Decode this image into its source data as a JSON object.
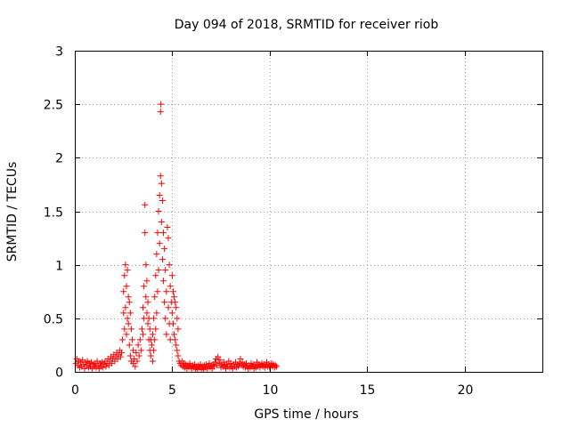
{
  "chart_data": {
    "type": "scatter",
    "title": "Day 094 of 2018, SRMTID for receiver riob",
    "xlabel": "GPS time / hours",
    "ylabel": "SRMTID / TECUs",
    "xlim": [
      0,
      24
    ],
    "ylim": [
      0,
      3
    ],
    "xticks": [
      0,
      5,
      10,
      15,
      20
    ],
    "xtick_labels": [
      "0",
      "5",
      "10",
      "15",
      "20"
    ],
    "yticks": [
      0,
      0.5,
      1,
      1.5,
      2,
      2.5,
      3
    ],
    "ytick_labels": [
      "0",
      "0.5",
      "1",
      "1.5",
      "2",
      "2.5",
      "3"
    ],
    "grid": true,
    "marker": "+",
    "color": "#ff0000",
    "series": [
      {
        "values": [
          [
            0.05,
            0.08
          ],
          [
            0.1,
            0.12
          ],
          [
            0.15,
            0.06
          ],
          [
            0.2,
            0.1
          ],
          [
            0.25,
            0.04
          ],
          [
            0.3,
            0.09
          ],
          [
            0.35,
            0.05
          ],
          [
            0.4,
            0.11
          ],
          [
            0.45,
            0.07
          ],
          [
            0.5,
            0.03
          ],
          [
            0.55,
            0.09
          ],
          [
            0.6,
            0.06
          ],
          [
            0.65,
            0.1
          ],
          [
            0.7,
            0.04
          ],
          [
            0.75,
            0.08
          ],
          [
            0.8,
            0.05
          ],
          [
            0.85,
            0.09
          ],
          [
            0.9,
            0.03
          ],
          [
            0.95,
            0.07
          ],
          [
            1.0,
            0.05
          ],
          [
            1.05,
            0.08
          ],
          [
            1.1,
            0.04
          ],
          [
            1.15,
            0.1
          ],
          [
            1.2,
            0.06
          ],
          [
            1.25,
            0.03
          ],
          [
            1.3,
            0.08
          ],
          [
            1.35,
            0.05
          ],
          [
            1.4,
            0.09
          ],
          [
            1.45,
            0.04
          ],
          [
            1.5,
            0.07
          ],
          [
            1.55,
            0.1
          ],
          [
            1.6,
            0.05
          ],
          [
            1.65,
            0.08
          ],
          [
            1.7,
            0.12
          ],
          [
            1.75,
            0.06
          ],
          [
            1.8,
            0.1
          ],
          [
            1.85,
            0.14
          ],
          [
            1.9,
            0.08
          ],
          [
            1.95,
            0.12
          ],
          [
            2.0,
            0.16
          ],
          [
            2.05,
            0.1
          ],
          [
            2.1,
            0.14
          ],
          [
            2.15,
            0.18
          ],
          [
            2.2,
            0.12
          ],
          [
            2.25,
            0.16
          ],
          [
            2.3,
            0.2
          ],
          [
            2.35,
            0.14
          ],
          [
            2.4,
            0.18
          ],
          [
            2.45,
            0.3
          ],
          [
            2.5,
            0.55
          ],
          [
            2.5,
            0.75
          ],
          [
            2.55,
            0.4
          ],
          [
            2.55,
            0.9
          ],
          [
            2.6,
            0.6
          ],
          [
            2.6,
            1.0
          ],
          [
            2.65,
            0.35
          ],
          [
            2.65,
            0.8
          ],
          [
            2.7,
            0.5
          ],
          [
            2.7,
            0.95
          ],
          [
            2.75,
            0.45
          ],
          [
            2.75,
            0.7
          ],
          [
            2.8,
            0.25
          ],
          [
            2.8,
            0.65
          ],
          [
            2.85,
            0.15
          ],
          [
            2.85,
            0.55
          ],
          [
            2.9,
            0.1
          ],
          [
            2.9,
            0.4
          ],
          [
            2.95,
            0.3
          ],
          [
            3.0,
            0.08
          ],
          [
            3.0,
            0.2
          ],
          [
            3.05,
            0.12
          ],
          [
            3.1,
            0.05
          ],
          [
            3.15,
            0.18
          ],
          [
            3.2,
            0.1
          ],
          [
            3.25,
            0.25
          ],
          [
            3.3,
            0.15
          ],
          [
            3.35,
            0.3
          ],
          [
            3.4,
            0.2
          ],
          [
            3.45,
            0.4
          ],
          [
            3.5,
            0.35
          ],
          [
            3.5,
            0.6
          ],
          [
            3.55,
            0.5
          ],
          [
            3.55,
            0.8
          ],
          [
            3.6,
            1.3
          ],
          [
            3.6,
            1.56
          ],
          [
            3.65,
            0.7
          ],
          [
            3.65,
            1.0
          ],
          [
            3.7,
            0.55
          ],
          [
            3.7,
            0.85
          ],
          [
            3.75,
            0.45
          ],
          [
            3.75,
            0.65
          ],
          [
            3.8,
            0.3
          ],
          [
            3.8,
            0.5
          ],
          [
            3.85,
            0.2
          ],
          [
            3.85,
            0.4
          ],
          [
            3.9,
            0.15
          ],
          [
            3.9,
            0.3
          ],
          [
            3.95,
            0.25
          ],
          [
            4.0,
            0.1
          ],
          [
            4.0,
            0.35
          ],
          [
            4.05,
            0.2
          ],
          [
            4.05,
            0.5
          ],
          [
            4.1,
            0.3
          ],
          [
            4.1,
            0.7
          ],
          [
            4.15,
            0.4
          ],
          [
            4.15,
            0.9
          ],
          [
            4.2,
            0.55
          ],
          [
            4.2,
            1.1
          ],
          [
            4.25,
            0.75
          ],
          [
            4.25,
            1.3
          ],
          [
            4.3,
            0.95
          ],
          [
            4.3,
            1.5
          ],
          [
            4.35,
            1.2
          ],
          [
            4.35,
            1.65
          ],
          [
            4.4,
            1.83
          ],
          [
            4.4,
            2.43
          ],
          [
            4.42,
            2.5
          ],
          [
            4.45,
            1.4
          ],
          [
            4.45,
            1.76
          ],
          [
            4.5,
            1.05
          ],
          [
            4.5,
            1.6
          ],
          [
            4.55,
            0.85
          ],
          [
            4.55,
            1.3
          ],
          [
            4.6,
            0.65
          ],
          [
            4.6,
            1.15
          ],
          [
            4.65,
            0.5
          ],
          [
            4.65,
            0.95
          ],
          [
            4.7,
            0.35
          ],
          [
            4.7,
            0.75
          ],
          [
            4.75,
            1.35
          ],
          [
            4.8,
            1.25
          ],
          [
            4.8,
            0.6
          ],
          [
            4.85,
            1.0
          ],
          [
            4.85,
            0.45
          ],
          [
            4.9,
            0.8
          ],
          [
            4.9,
            0.3
          ],
          [
            4.95,
            0.65
          ],
          [
            5.0,
            0.55
          ],
          [
            5.0,
            0.9
          ],
          [
            5.05,
            0.45
          ],
          [
            5.05,
            0.75
          ],
          [
            5.1,
            0.35
          ],
          [
            5.1,
            0.7
          ],
          [
            5.15,
            0.3
          ],
          [
            5.15,
            0.65
          ],
          [
            5.2,
            0.25
          ],
          [
            5.2,
            0.6
          ],
          [
            5.25,
            0.2
          ],
          [
            5.25,
            0.5
          ],
          [
            5.3,
            0.15
          ],
          [
            5.3,
            0.4
          ],
          [
            5.35,
            0.1
          ],
          [
            5.4,
            0.08
          ],
          [
            5.45,
            0.06
          ],
          [
            5.5,
            0.1
          ],
          [
            5.55,
            0.05
          ],
          [
            5.6,
            0.08
          ],
          [
            5.65,
            0.04
          ],
          [
            5.7,
            0.07
          ],
          [
            5.75,
            0.03
          ],
          [
            5.8,
            0.06
          ],
          [
            5.85,
            0.04
          ],
          [
            5.9,
            0.08
          ],
          [
            5.95,
            0.05
          ],
          [
            6.0,
            0.03
          ],
          [
            6.05,
            0.06
          ],
          [
            6.1,
            0.04
          ],
          [
            6.15,
            0.07
          ],
          [
            6.2,
            0.03
          ],
          [
            6.25,
            0.05
          ],
          [
            6.3,
            0.02
          ],
          [
            6.35,
            0.06
          ],
          [
            6.4,
            0.04
          ],
          [
            6.45,
            0.07
          ],
          [
            6.5,
            0.03
          ],
          [
            6.55,
            0.05
          ],
          [
            6.6,
            0.02
          ],
          [
            6.65,
            0.06
          ],
          [
            6.7,
            0.04
          ],
          [
            6.75,
            0.07
          ],
          [
            6.8,
            0.03
          ],
          [
            6.85,
            0.05
          ],
          [
            6.9,
            0.08
          ],
          [
            6.95,
            0.04
          ],
          [
            7.0,
            0.06
          ],
          [
            7.05,
            0.03
          ],
          [
            7.1,
            0.07
          ],
          [
            7.15,
            0.05
          ],
          [
            7.2,
            0.09
          ],
          [
            7.25,
            0.12
          ],
          [
            7.3,
            0.06
          ],
          [
            7.35,
            0.14
          ],
          [
            7.4,
            0.08
          ],
          [
            7.45,
            0.11
          ],
          [
            7.5,
            0.04
          ],
          [
            7.55,
            0.07
          ],
          [
            7.6,
            0.05
          ],
          [
            7.65,
            0.09
          ],
          [
            7.7,
            0.06
          ],
          [
            7.75,
            0.03
          ],
          [
            7.8,
            0.07
          ],
          [
            7.85,
            0.05
          ],
          [
            7.9,
            0.1
          ],
          [
            7.95,
            0.04
          ],
          [
            8.0,
            0.08
          ],
          [
            8.05,
            0.05
          ],
          [
            8.1,
            0.03
          ],
          [
            8.15,
            0.07
          ],
          [
            8.2,
            0.05
          ],
          [
            8.25,
            0.09
          ],
          [
            8.3,
            0.04
          ],
          [
            8.35,
            0.07
          ],
          [
            8.4,
            0.05
          ],
          [
            8.45,
            0.08
          ],
          [
            8.5,
            0.12
          ],
          [
            8.55,
            0.06
          ],
          [
            8.6,
            0.09
          ],
          [
            8.65,
            0.05
          ],
          [
            8.7,
            0.07
          ],
          [
            8.75,
            0.04
          ],
          [
            8.8,
            0.08
          ],
          [
            8.85,
            0.05
          ],
          [
            8.9,
            0.03
          ],
          [
            8.95,
            0.06
          ],
          [
            9.0,
            0.04
          ],
          [
            9.05,
            0.08
          ],
          [
            9.1,
            0.05
          ],
          [
            9.15,
            0.07
          ],
          [
            9.2,
            0.03
          ],
          [
            9.25,
            0.06
          ],
          [
            9.3,
            0.04
          ],
          [
            9.35,
            0.09
          ],
          [
            9.4,
            0.05
          ],
          [
            9.45,
            0.07
          ],
          [
            9.5,
            0.04
          ],
          [
            9.55,
            0.06
          ],
          [
            9.6,
            0.08
          ],
          [
            9.65,
            0.05
          ],
          [
            9.7,
            0.07
          ],
          [
            9.75,
            0.04
          ],
          [
            9.8,
            0.06
          ],
          [
            9.85,
            0.09
          ],
          [
            9.9,
            0.05
          ],
          [
            9.95,
            0.07
          ],
          [
            10.0,
            0.04
          ],
          [
            10.05,
            0.06
          ],
          [
            10.1,
            0.08
          ],
          [
            10.15,
            0.05
          ],
          [
            10.2,
            0.07
          ],
          [
            10.25,
            0.04
          ],
          [
            10.3,
            0.06
          ],
          [
            10.35,
            0.05
          ]
        ]
      }
    ]
  }
}
